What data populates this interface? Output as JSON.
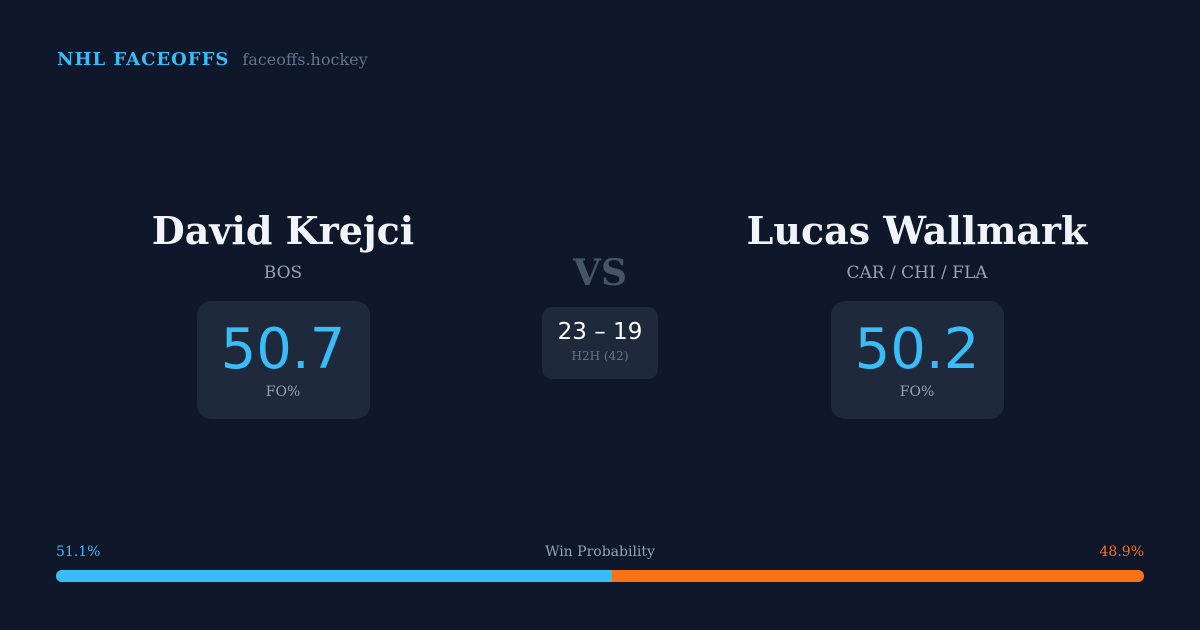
{
  "brand": {
    "title": "NHL FACEOFFS",
    "url": "faceoffs.hockey"
  },
  "player1": {
    "name": "David Krejci",
    "team": "BOS",
    "fo_pct": "50.7",
    "fo_label": "FO%"
  },
  "player2": {
    "name": "Lucas Wallmark",
    "team": "CAR / CHI / FLA",
    "fo_pct": "50.2",
    "fo_label": "FO%"
  },
  "vs": "VS",
  "h2h": {
    "score": "23 – 19",
    "label": "H2H (42)"
  },
  "win_probability": {
    "label": "Win Probability",
    "left": "51.1%",
    "right": "48.9%",
    "left_value": 51.1,
    "left_color": "#38bdf8",
    "right_color": "#f97316"
  }
}
